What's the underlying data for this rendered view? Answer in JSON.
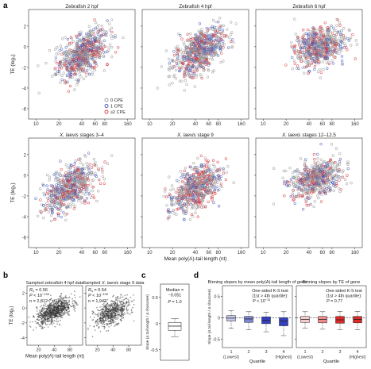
{
  "figure": {
    "panel_letters": [
      "a",
      "b",
      "c",
      "d"
    ]
  },
  "colors": {
    "cpe0": "#9a9a9a",
    "cpe1": "#3f58b8",
    "cpe2": "#d9343a",
    "box_light_blue": "#c7c9ee",
    "box_mid_blue": "#7b84d8",
    "box_dark_blue": "#3340c2",
    "box_light_red": "#f6caca",
    "box_mid_red": "#ee8b8b",
    "box_dark_red": "#dc2a2a"
  },
  "chart_data": [
    {
      "type": "scatter",
      "panel": "a",
      "title": "Zebrafish 2 hpf",
      "xlabel": "",
      "ylabel": "TE (log₂)",
      "x_scale": "log",
      "xticks": [
        10,
        20,
        40,
        60,
        80,
        160
      ],
      "yticks": [
        2,
        0,
        -2,
        -4,
        -6
      ],
      "xlim": [
        8,
        200
      ],
      "ylim": [
        -7,
        3.6
      ],
      "legend": {
        "entries": [
          "0 CPE",
          "1 CPE",
          "≥2 CPE"
        ],
        "placement": "bottom-right"
      },
      "point_cloud": {
        "x_center": 40,
        "y_at_x_center": -0.8,
        "slope_per_log2_x": 1.15,
        "spread": 1.0,
        "count": 700
      }
    },
    {
      "type": "scatter",
      "panel": "a",
      "title": "Zebrafish 4 hpf",
      "xlabel": "",
      "ylabel": "",
      "x_scale": "log",
      "xticks": [
        10,
        20,
        40,
        60,
        80,
        160
      ],
      "yticks": [],
      "xlim": [
        8,
        200
      ],
      "ylim": [
        -7,
        3.6
      ],
      "point_cloud": {
        "x_center": 45,
        "y_at_x_center": -0.5,
        "slope_per_log2_x": 1.1,
        "spread": 1.0,
        "count": 700
      }
    },
    {
      "type": "scatter",
      "panel": "a",
      "title": "Zebrafish 6 hpf",
      "xlabel": "",
      "ylabel": "",
      "x_scale": "log",
      "xticks": [
        10,
        20,
        40,
        60,
        80,
        160
      ],
      "yticks": [],
      "xlim": [
        8,
        200
      ],
      "ylim": [
        -7,
        3.6
      ],
      "point_cloud": {
        "x_center": 55,
        "y_at_x_center": 0.0,
        "slope_per_log2_x": 0.5,
        "spread": 0.9,
        "count": 650
      }
    },
    {
      "type": "scatter",
      "panel": "a",
      "title_species": "X. laevis",
      "title_rest": "stages 3–4",
      "xlabel": "",
      "ylabel": "TE (log₂)",
      "x_scale": "log",
      "xticks": [
        10,
        20,
        40,
        60,
        80,
        160
      ],
      "yticks": [
        2,
        0,
        -2,
        -4,
        -6
      ],
      "xlim": [
        8,
        200
      ],
      "ylim": [
        -7,
        3.6
      ],
      "point_cloud": {
        "x_center": 28,
        "y_at_x_center": -1.2,
        "slope_per_log2_x": 1.05,
        "spread": 1.0,
        "count": 650
      }
    },
    {
      "type": "scatter",
      "panel": "a",
      "title_species": "X. laevis",
      "title_rest": "stage 9",
      "xlabel": "Mean poly(A)-tail length (nt)",
      "ylabel": "",
      "x_scale": "log",
      "xticks": [
        10,
        20,
        40,
        60,
        80,
        160
      ],
      "yticks": [],
      "xlim": [
        8,
        200
      ],
      "ylim": [
        -7,
        3.6
      ],
      "point_cloud": {
        "x_center": 40,
        "y_at_x_center": -1.2,
        "slope_per_log2_x": 1.1,
        "spread": 1.0,
        "count": 650
      }
    },
    {
      "type": "scatter",
      "panel": "a",
      "title_species": "X. laevis",
      "title_rest": "stages 12–12.5",
      "xlabel": "",
      "ylabel": "",
      "x_scale": "log",
      "xticks": [
        10,
        20,
        40,
        60,
        80,
        160
      ],
      "yticks": [],
      "xlim": [
        8,
        200
      ],
      "ylim": [
        -7,
        3.6
      ],
      "point_cloud": {
        "x_center": 50,
        "y_at_x_center": -0.3,
        "slope_per_log2_x": 0.5,
        "spread": 0.9,
        "count": 600
      }
    },
    {
      "type": "scatter",
      "panel": "b",
      "title": "Sampled zebrafish 4 hpf data",
      "ylabel": "TE (log₂)",
      "xlabel": "Mean poly(A)-tail length (nt)",
      "x_scale": "log",
      "xticks": [
        20,
        40,
        80
      ],
      "yticks": [
        2,
        0,
        -2,
        -4
      ],
      "xlim": [
        12,
        140
      ],
      "ylim": [
        -5,
        3
      ],
      "stats": {
        "rs_label": "R",
        "rs_sub": "s",
        "rs_value": " = 0.56",
        "p_label": "P",
        "p_value": " < 10",
        "p_exp": "−100",
        "n_text": "n = 2,812"
      },
      "point_cloud": {
        "x_center": 40,
        "y_at_x_center": -0.4,
        "slope_per_log2_x": 0.9,
        "spread": 0.7,
        "count": 900
      }
    },
    {
      "type": "scatter",
      "panel": "b",
      "title_prefix": "Sampled ",
      "title_species": "X. laevis",
      "title_suffix": " stage 9 data",
      "xlabel": "",
      "ylabel": "",
      "x_scale": "log",
      "xticks": [
        20,
        40,
        80
      ],
      "yticks": [],
      "xlim": [
        12,
        140
      ],
      "ylim": [
        -5,
        3
      ],
      "stats": {
        "rs_label": "R",
        "rs_sub": "s",
        "rs_value": " = 0.54",
        "p_label": "P",
        "p_value": " < 10",
        "p_exp": "−100",
        "n_text": "n = 1,942"
      },
      "point_cloud": {
        "x_center": 38,
        "y_at_x_center": -0.6,
        "slope_per_log2_x": 0.9,
        "spread": 0.8,
        "count": 650
      }
    },
    {
      "type": "box",
      "panel": "c",
      "ylabel": "Slope (Δ tail length / Δ ribosome)",
      "yticks": [
        0.5,
        0,
        -0.5
      ],
      "ylim": [
        -0.7,
        0.75
      ],
      "annotation": [
        "Median =",
        "−0.051"
      ],
      "p_label": "P",
      "p_value": " = 1.0",
      "box": {
        "whisker_low": -0.25,
        "q1": -0.13,
        "median": -0.05,
        "q3": 0.02,
        "whisker_high": 0.09
      }
    },
    {
      "type": "box",
      "panel": "d",
      "title": "Binning slopes by mean poly(A)-tail length of gene",
      "ylabel": "Slope (Δ tail length / Δ ribosome)",
      "xlabel": "Quartile",
      "categories": [
        "1",
        "2",
        "3",
        "4"
      ],
      "category_notes": [
        "(Lowest)",
        "",
        "",
        "(Highest)"
      ],
      "yticks": [
        0.5,
        0,
        -0.5
      ],
      "ylim": [
        -0.7,
        0.75
      ],
      "test": [
        "One-sided K-S test",
        "(1st > 4th quartile):"
      ],
      "p_label": "P",
      "p_value": " < 10",
      "p_exp": "−11",
      "boxes": [
        {
          "whisker_low": -0.25,
          "q1": -0.08,
          "median": -0.01,
          "q3": 0.05,
          "whisker_high": 0.16
        },
        {
          "whisker_low": -0.28,
          "q1": -0.11,
          "median": -0.03,
          "q3": 0.03,
          "whisker_high": 0.14
        },
        {
          "whisker_low": -0.33,
          "q1": -0.14,
          "median": -0.06,
          "q3": 0.02,
          "whisker_high": 0.13
        },
        {
          "whisker_low": -0.42,
          "q1": -0.19,
          "median": -0.08,
          "q3": 0.0,
          "whisker_high": 0.14
        }
      ]
    },
    {
      "type": "box",
      "panel": "d",
      "title": "Binning slopes by TE of gene",
      "xlabel": "Quartile",
      "categories": [
        "1",
        "2",
        "3",
        "4"
      ],
      "category_notes": [
        "(Lowest)",
        "",
        "",
        "(Highest)"
      ],
      "yticks": [],
      "ylim": [
        -0.7,
        0.75
      ],
      "test": [
        "One-sided K-S test",
        "(1st > 4th quartile):"
      ],
      "p_label": "P",
      "p_value": " = 0.77",
      "boxes": [
        {
          "whisker_low": -0.25,
          "q1": -0.11,
          "median": -0.04,
          "q3": 0.03,
          "whisker_high": 0.14
        },
        {
          "whisker_low": -0.27,
          "q1": -0.12,
          "median": -0.04,
          "q3": 0.03,
          "whisker_high": 0.14
        },
        {
          "whisker_low": -0.28,
          "q1": -0.13,
          "median": -0.05,
          "q3": 0.03,
          "whisker_high": 0.15
        },
        {
          "whisker_low": -0.28,
          "q1": -0.12,
          "median": -0.04,
          "q3": 0.03,
          "whisker_high": 0.15
        }
      ]
    }
  ]
}
